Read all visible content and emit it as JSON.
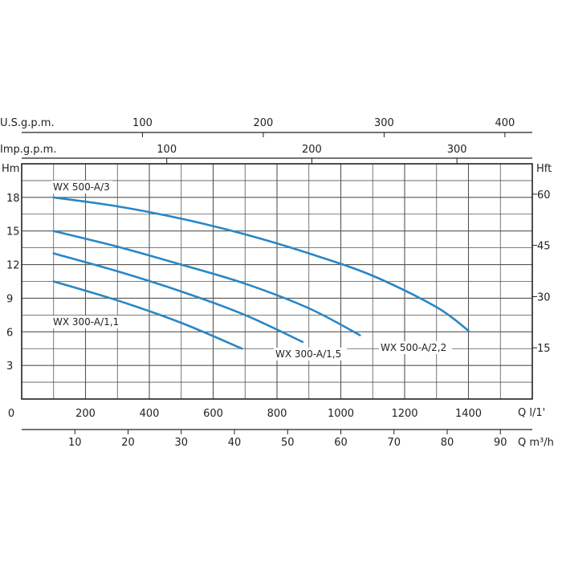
{
  "chart_data": {
    "type": "line",
    "title": "",
    "y_left": {
      "label": "Hm",
      "range": [
        0,
        21
      ],
      "ticks": [
        "3",
        "6",
        "9",
        "12",
        "15",
        "18"
      ],
      "tick_values": [
        3,
        6,
        9,
        12,
        15,
        18
      ]
    },
    "y_right": {
      "label": "Hft",
      "ticks": [
        "15",
        "30",
        "45",
        "60"
      ],
      "tick_values": [
        15,
        30,
        45,
        60
      ]
    },
    "x_main": {
      "label": "Q l/1'",
      "range": [
        0,
        1600
      ],
      "ticks": [
        "0",
        "200",
        "400",
        "600",
        "800",
        "1000",
        "1200",
        "1400"
      ],
      "tick_values": [
        0,
        200,
        400,
        600,
        800,
        1000,
        1200,
        1400
      ]
    },
    "x_m3h": {
      "label": "Q m³/h",
      "ticks": [
        "10",
        "20",
        "30",
        "40",
        "50",
        "60",
        "70",
        "80",
        "90"
      ],
      "tick_values": [
        10,
        20,
        30,
        40,
        50,
        60,
        70,
        80,
        90
      ]
    },
    "x_usgpm": {
      "label": "U.S.g.p.m.",
      "ticks": [
        "100",
        "200",
        "300",
        "400"
      ],
      "tick_values": [
        100,
        200,
        300,
        400
      ]
    },
    "x_impgpm": {
      "label": "Imp.g.p.m.",
      "ticks": [
        "100",
        "200",
        "300"
      ],
      "tick_values": [
        100,
        200,
        300
      ]
    },
    "grid": true,
    "series": [
      {
        "name": "WX 500-A/3",
        "color": "#2a86c5",
        "x": [
          100,
          300,
          500,
          700,
          900,
          1100,
          1300,
          1400
        ],
        "y": [
          18.0,
          17.2,
          16.1,
          14.7,
          13.0,
          11.0,
          8.2,
          6.1
        ]
      },
      {
        "name": "WX 500-A/2,2",
        "color": "#2a86c5",
        "x": [
          100,
          300,
          500,
          700,
          900,
          1060
        ],
        "y": [
          15.0,
          13.6,
          12.0,
          10.3,
          8.1,
          5.7
        ]
      },
      {
        "name": "WX 300-A/1,5",
        "color": "#2a86c5",
        "x": [
          100,
          300,
          500,
          700,
          880
        ],
        "y": [
          13.0,
          11.4,
          9.6,
          7.5,
          5.1
        ]
      },
      {
        "name": "WX 300-A/1,1",
        "color": "#2a86c5",
        "x": [
          100,
          300,
          500,
          690
        ],
        "y": [
          10.5,
          8.8,
          6.8,
          4.5
        ]
      }
    ]
  }
}
